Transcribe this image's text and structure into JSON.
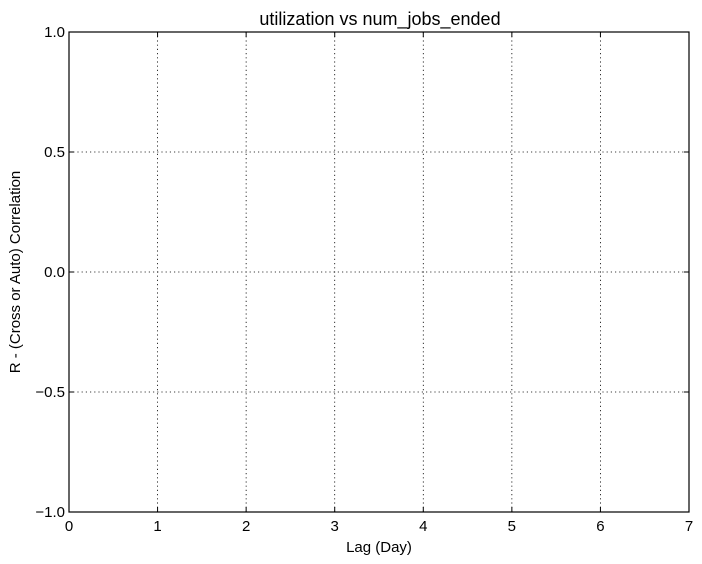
{
  "chart_data": {
    "type": "line",
    "title": "utilization vs num_jobs_ended",
    "xlabel": "Lag (Day)",
    "ylabel": "R - (Cross or Auto) Correlation",
    "xlim": [
      0,
      7
    ],
    "ylim": [
      -1.0,
      1.0
    ],
    "x_ticks": [
      0,
      1,
      2,
      3,
      4,
      5,
      6,
      7
    ],
    "x_tick_labels": [
      "0",
      "1",
      "2",
      "3",
      "4",
      "5",
      "6",
      "7"
    ],
    "y_ticks": [
      -1.0,
      -0.5,
      0.0,
      0.5,
      1.0
    ],
    "y_tick_labels": [
      "−1.0",
      "−0.5",
      "0.0",
      "0.5",
      "1.0"
    ],
    "grid": true,
    "grid_style": "dotted",
    "series": []
  }
}
